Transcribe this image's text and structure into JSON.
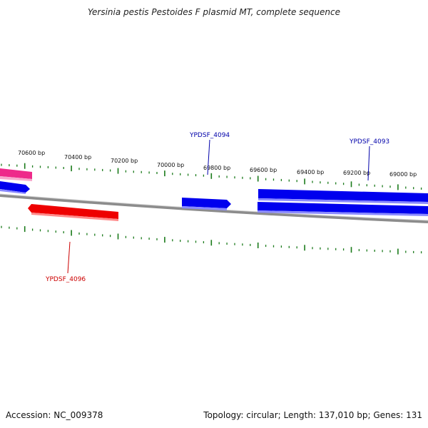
{
  "title": "Yersinia pestis Pestoides F plasmid MT, complete sequence",
  "footer": {
    "accession": "Accession: NC_009378",
    "summary": "Topology: circular; Length: 137,010 bp; Genes: 131"
  },
  "ticks": [
    "70600 bp",
    "70400 bp",
    "70200 bp",
    "70000 bp",
    "69800 bp",
    "69600 bp",
    "69400 bp",
    "69200 bp",
    "69000 bp"
  ],
  "gene_labels": [
    {
      "text": "YPDSF_4094",
      "color": "#0000aa"
    },
    {
      "text": "YPDSF_4093",
      "color": "#0000aa"
    },
    {
      "text": "YPDSF_4096",
      "color": "#cc0000"
    }
  ],
  "colors": {
    "forward_gene": "#0000ee",
    "reverse_gene": "#ee0000",
    "pink_gene": "#ee2a8a",
    "backbone": "#8c8c8c",
    "tick": "#1a7a1a"
  }
}
